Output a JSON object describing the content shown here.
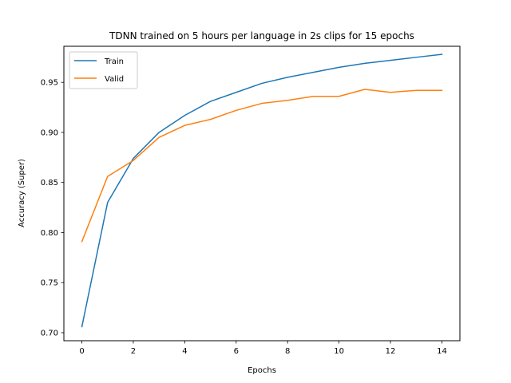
{
  "chart_data": {
    "type": "line",
    "title": "TDNN trained on 5 hours per language in 2s clips for 15 epochs",
    "xlabel": "Epochs",
    "ylabel": "Accuracy (Super)",
    "x": [
      0,
      1,
      2,
      3,
      4,
      5,
      6,
      7,
      8,
      9,
      10,
      11,
      12,
      13,
      14
    ],
    "xlim": [
      -0.7,
      14.7
    ],
    "ylim": [
      0.692,
      0.986
    ],
    "xticks": [
      0,
      2,
      4,
      6,
      8,
      10,
      12,
      14
    ],
    "xtick_labels": [
      "0",
      "2",
      "4",
      "6",
      "8",
      "10",
      "12",
      "14"
    ],
    "yticks": [
      0.7,
      0.75,
      0.8,
      0.85,
      0.9,
      0.95
    ],
    "ytick_labels": [
      "0.70",
      "0.75",
      "0.80",
      "0.85",
      "0.90",
      "0.95"
    ],
    "grid": false,
    "legend_position": "top-left",
    "series": [
      {
        "name": "Train",
        "color": "#1f77b4",
        "values": [
          0.706,
          0.83,
          0.874,
          0.9,
          0.917,
          0.931,
          0.94,
          0.949,
          0.955,
          0.96,
          0.965,
          0.969,
          0.972,
          0.975,
          0.978
        ]
      },
      {
        "name": "Valid",
        "color": "#ff7f0e",
        "values": [
          0.791,
          0.856,
          0.872,
          0.895,
          0.907,
          0.913,
          0.922,
          0.929,
          0.932,
          0.936,
          0.936,
          0.943,
          0.94,
          0.942,
          0.942
        ]
      }
    ]
  }
}
